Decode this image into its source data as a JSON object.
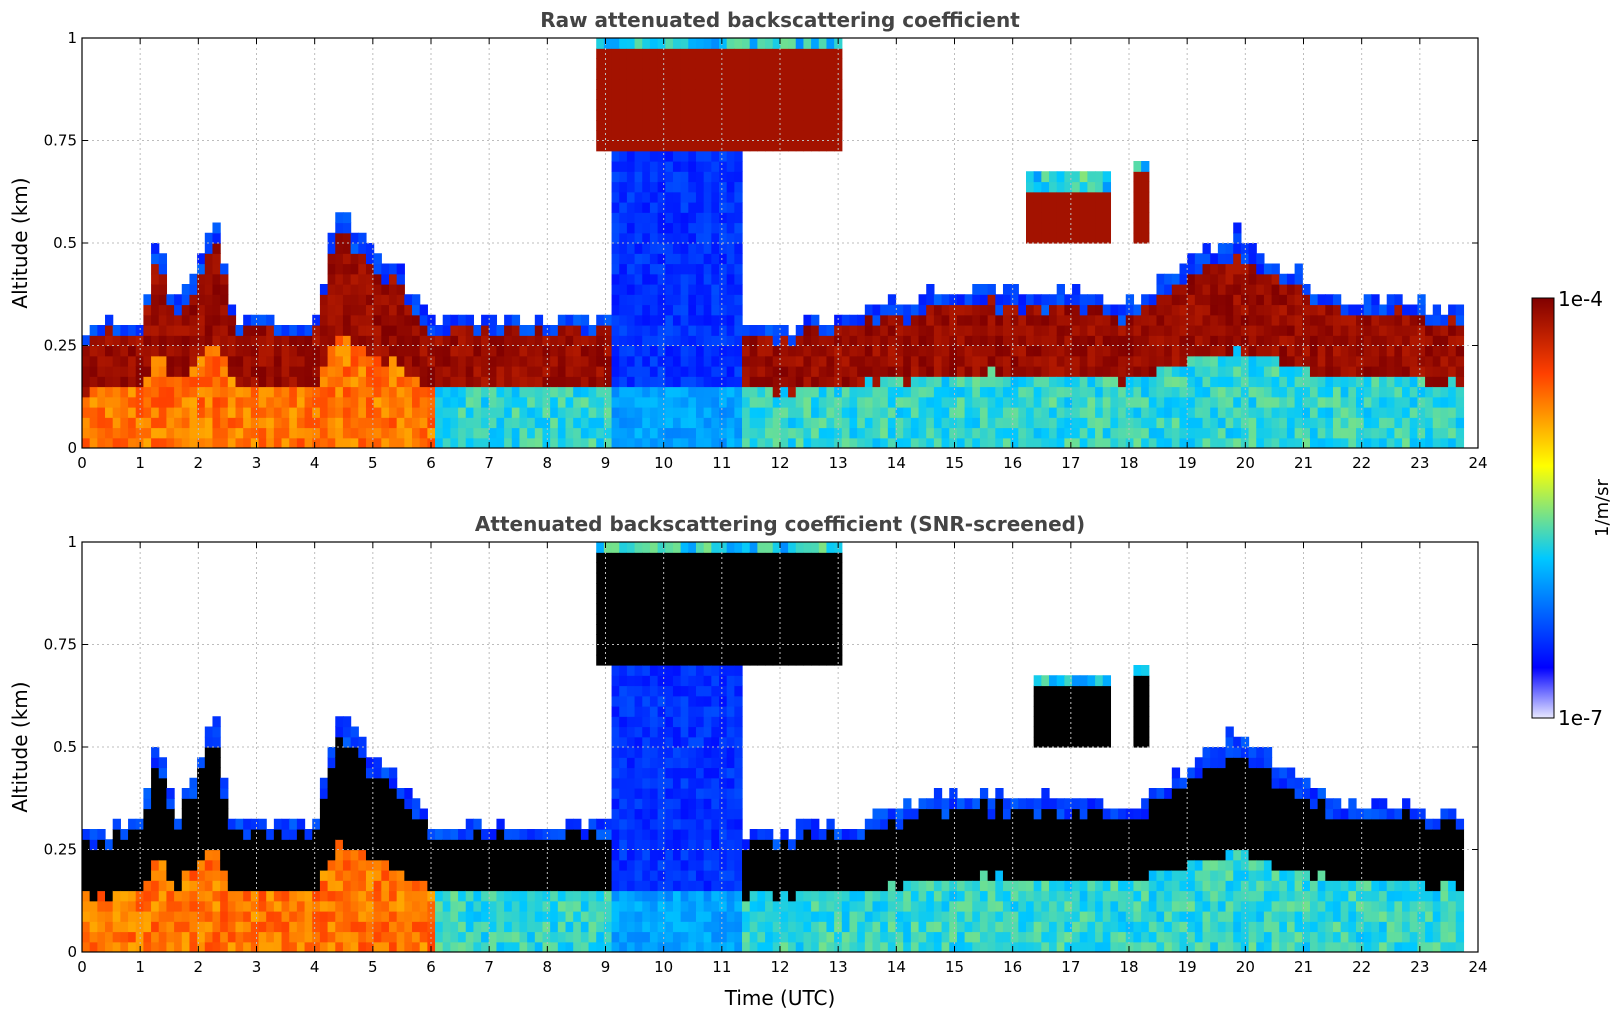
{
  "chart_data": [
    {
      "type": "heatmap",
      "id": "top",
      "title": "Raw attenuated backscattering coefficient",
      "xlabel": "",
      "ylabel": "Altitude (km)",
      "xlim": [
        0,
        24
      ],
      "ylim": [
        0,
        1
      ],
      "x_ticks": [
        "0",
        "1",
        "2",
        "3",
        "4",
        "5",
        "6",
        "7",
        "8",
        "9",
        "10",
        "11",
        "12",
        "13",
        "14",
        "15",
        "16",
        "17",
        "18",
        "19",
        "20",
        "21",
        "22",
        "23",
        "24"
      ],
      "y_ticks": [
        {
          "value": 0,
          "label": "0"
        },
        {
          "value": 0.25,
          "label": "0.25"
        },
        {
          "value": 0.5,
          "label": "0.5"
        },
        {
          "value": 0.75,
          "label": "0.75"
        },
        {
          "value": 1,
          "label": "1"
        }
      ],
      "grid": true,
      "data_end_hour": 23.75,
      "screened": false,
      "boundary_layer_top_km": [
        {
          "t": 0,
          "z": 0.28
        },
        {
          "t": 1,
          "z": 0.3
        },
        {
          "t": 1.3,
          "z": 0.52
        },
        {
          "t": 1.6,
          "z": 0.32
        },
        {
          "t": 2.3,
          "z": 0.55
        },
        {
          "t": 2.6,
          "z": 0.3
        },
        {
          "t": 4.0,
          "z": 0.3
        },
        {
          "t": 4.4,
          "z": 0.58
        },
        {
          "t": 4.8,
          "z": 0.5
        },
        {
          "t": 5.3,
          "z": 0.45
        },
        {
          "t": 6.0,
          "z": 0.3
        },
        {
          "t": 8.8,
          "z": 0.3
        },
        {
          "t": 11.4,
          "z": 0.28
        },
        {
          "t": 13.0,
          "z": 0.3
        },
        {
          "t": 15.0,
          "z": 0.38
        },
        {
          "t": 17.0,
          "z": 0.37
        },
        {
          "t": 18.0,
          "z": 0.34
        },
        {
          "t": 19.8,
          "z": 0.52
        },
        {
          "t": 20.5,
          "z": 0.45
        },
        {
          "t": 21.5,
          "z": 0.36
        },
        {
          "t": 23.75,
          "z": 0.33
        }
      ],
      "cloud_layers": [
        {
          "t_start": 8.8,
          "t_end": 13.0,
          "base_km": 0.72,
          "top_km": 1.0
        },
        {
          "t_start": 16.2,
          "t_end": 17.6,
          "base_km": 0.48,
          "top_km": 0.65
        },
        {
          "t_start": 18.05,
          "t_end": 18.25,
          "base_km": 0.5,
          "top_km": 0.7
        }
      ],
      "precipitation_hours": [
        9.0,
        11.3
      ]
    },
    {
      "type": "heatmap",
      "id": "bottom",
      "title": "Attenuated backscattering coefficient (SNR-screened)",
      "xlabel": "Time (UTC)",
      "ylabel": "Altitude (km)",
      "xlim": [
        0,
        24
      ],
      "ylim": [
        0,
        1
      ],
      "x_ticks": [
        "0",
        "1",
        "2",
        "3",
        "4",
        "5",
        "6",
        "7",
        "8",
        "9",
        "10",
        "11",
        "12",
        "13",
        "14",
        "15",
        "16",
        "17",
        "18",
        "19",
        "20",
        "21",
        "22",
        "23",
        "24"
      ],
      "y_ticks": [
        {
          "value": 0,
          "label": "0"
        },
        {
          "value": 0.25,
          "label": "0.25"
        },
        {
          "value": 0.5,
          "label": "0.5"
        },
        {
          "value": 0.75,
          "label": "0.75"
        },
        {
          "value": 1,
          "label": "1"
        }
      ],
      "grid": true,
      "data_end_hour": 23.75,
      "screened": true,
      "boundary_layer_top_km": [
        {
          "t": 0,
          "z": 0.28
        },
        {
          "t": 1,
          "z": 0.3
        },
        {
          "t": 1.3,
          "z": 0.52
        },
        {
          "t": 1.6,
          "z": 0.32
        },
        {
          "t": 2.3,
          "z": 0.55
        },
        {
          "t": 2.6,
          "z": 0.3
        },
        {
          "t": 4.0,
          "z": 0.3
        },
        {
          "t": 4.4,
          "z": 0.58
        },
        {
          "t": 4.8,
          "z": 0.5
        },
        {
          "t": 5.3,
          "z": 0.45
        },
        {
          "t": 6.0,
          "z": 0.3
        },
        {
          "t": 8.8,
          "z": 0.3
        },
        {
          "t": 11.4,
          "z": 0.28
        },
        {
          "t": 13.0,
          "z": 0.3
        },
        {
          "t": 15.0,
          "z": 0.38
        },
        {
          "t": 17.0,
          "z": 0.37
        },
        {
          "t": 18.0,
          "z": 0.34
        },
        {
          "t": 19.8,
          "z": 0.52
        },
        {
          "t": 20.5,
          "z": 0.45
        },
        {
          "t": 21.5,
          "z": 0.36
        },
        {
          "t": 23.75,
          "z": 0.33
        }
      ],
      "cloud_layers": [
        {
          "t_start": 8.8,
          "t_end": 13.0,
          "base_km": 0.7,
          "top_km": 1.0
        },
        {
          "t_start": 16.3,
          "t_end": 17.6,
          "base_km": 0.5,
          "top_km": 0.66
        },
        {
          "t_start": 18.05,
          "t_end": 18.25,
          "base_km": 0.5,
          "top_km": 0.7
        }
      ],
      "precipitation_hours": [
        9.0,
        11.3
      ]
    }
  ],
  "colorbar": {
    "label": "1/m/sr",
    "max_label": "1e-4",
    "min_label": "1e-7",
    "scale": "log",
    "colormap": "jet",
    "colors": [
      "#e8e8ff",
      "#0000ff",
      "#00c8ff",
      "#ffff00",
      "#ff4000",
      "#800000"
    ],
    "saturated_color_screened": "#000000"
  }
}
